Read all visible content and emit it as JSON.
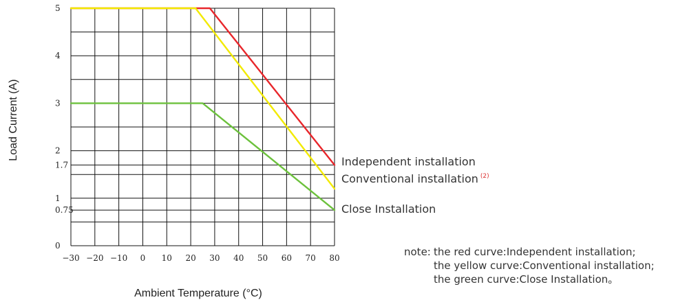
{
  "chart_data": {
    "type": "line",
    "xlabel": "Ambient Temperature (°C)",
    "ylabel": "Load Current (A)",
    "xlim": [
      -30,
      80
    ],
    "ylim": [
      0,
      5
    ],
    "grid": true,
    "x_ticks": [
      {
        "value": -30,
        "label": "−30"
      },
      {
        "value": -20,
        "label": "−20"
      },
      {
        "value": -10,
        "label": "−10"
      },
      {
        "value": 0,
        "label": "0"
      },
      {
        "value": 10,
        "label": "10"
      },
      {
        "value": 20,
        "label": "20"
      },
      {
        "value": 30,
        "label": "30"
      },
      {
        "value": 40,
        "label": "40"
      },
      {
        "value": 50,
        "label": "50"
      },
      {
        "value": 60,
        "label": "60"
      },
      {
        "value": 70,
        "label": "70"
      },
      {
        "value": 80,
        "label": "80"
      }
    ],
    "y_ticks": [
      {
        "value": 0,
        "label": "0"
      },
      {
        "value": 0.75,
        "label": "0.75"
      },
      {
        "value": 1,
        "label": "1"
      },
      {
        "value": 1.7,
        "label": "1.7"
      },
      {
        "value": 2,
        "label": "2"
      },
      {
        "value": 3,
        "label": "3"
      },
      {
        "value": 4,
        "label": "4"
      },
      {
        "value": 5,
        "label": "5"
      }
    ],
    "series": [
      {
        "name": "Independent installation",
        "color": "#e8262b",
        "points": [
          [
            -30,
            5
          ],
          [
            28,
            5
          ],
          [
            80,
            1.7
          ]
        ]
      },
      {
        "name": "Conventional installation",
        "superscript": "(2)",
        "color": "#f2ea00",
        "points": [
          [
            -30,
            5
          ],
          [
            22,
            5
          ],
          [
            80,
            1.2
          ]
        ]
      },
      {
        "name": "Close Installation",
        "color": "#6cc13c",
        "points": [
          [
            -30,
            3
          ],
          [
            25,
            3
          ],
          [
            80,
            0.75
          ]
        ]
      }
    ],
    "note": {
      "prefix": "note:",
      "lines": [
        "the red curve:Independent installation;",
        "the yellow curve:Conventional installation;",
        "the green curve:Close Installation。"
      ]
    }
  }
}
